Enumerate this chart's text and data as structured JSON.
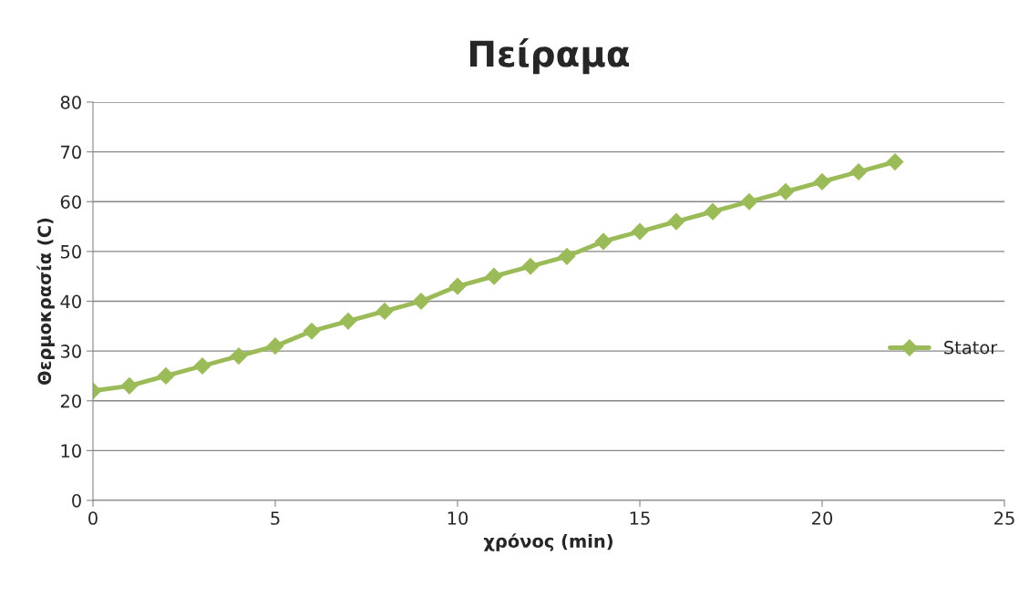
{
  "chart_data": {
    "type": "line",
    "title": "Πείραμα",
    "xlabel": "χρόνος (min)",
    "ylabel": "Θερμοκρασία (C)",
    "x": [
      0,
      1,
      2,
      3,
      4,
      5,
      6,
      7,
      8,
      9,
      10,
      11,
      12,
      13,
      14,
      15,
      16,
      17,
      18,
      19,
      20,
      21,
      22
    ],
    "series": [
      {
        "name": "Stator",
        "color": "#9bbb59",
        "values": [
          22,
          23,
          25,
          27,
          29,
          31,
          34,
          36,
          38,
          40,
          43,
          45,
          47,
          49,
          52,
          54,
          56,
          58,
          60,
          62,
          64,
          66,
          68
        ]
      }
    ],
    "xlim": [
      0,
      25
    ],
    "xticks": [
      0,
      5,
      10,
      15,
      20,
      25
    ],
    "ylim": [
      0,
      80
    ],
    "yticks": [
      0,
      10,
      20,
      30,
      40,
      50,
      60,
      70,
      80
    ],
    "grid": "y",
    "legend": "right",
    "marker": "diamond",
    "line_style": "solid"
  }
}
